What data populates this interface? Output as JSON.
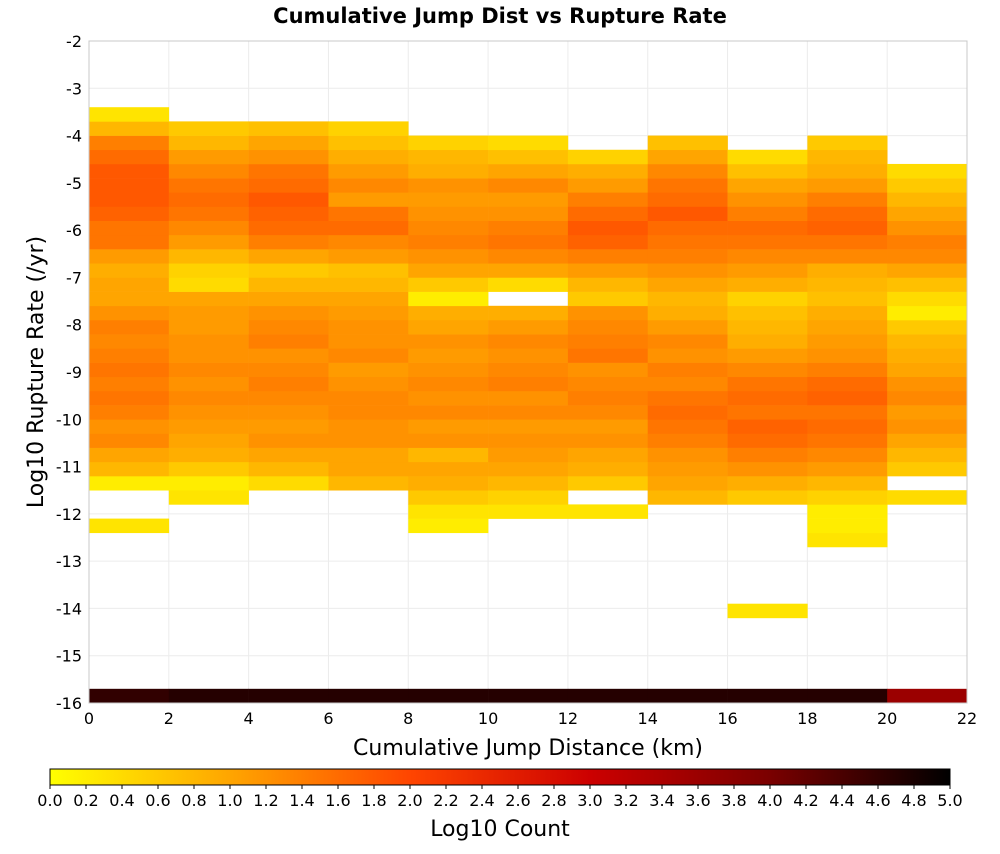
{
  "chart_data": {
    "type": "heatmap",
    "title": "Cumulative Jump Dist vs Rupture Rate",
    "xlabel": "Cumulative Jump Distance (km)",
    "ylabel": "Log10 Rupture Rate (/yr)",
    "xlim": [
      0,
      22
    ],
    "ylim": [
      -16,
      -2
    ],
    "x_ticks": [
      "0",
      "2",
      "4",
      "6",
      "8",
      "10",
      "12",
      "14",
      "16",
      "18",
      "20",
      "22"
    ],
    "y_ticks": [
      "-2",
      "-3",
      "-4",
      "-5",
      "-6",
      "-7",
      "-8",
      "-9",
      "-10",
      "-11",
      "-12",
      "-13",
      "-14",
      "-15",
      "-16"
    ],
    "grid": true,
    "x_bin_width": 2,
    "y_bin_height": 0.3,
    "colorbar": {
      "label": "Log10 Count",
      "min": 0.0,
      "max": 5.0,
      "ticks": [
        "0.0",
        "0.2",
        "0.4",
        "0.6",
        "0.8",
        "1.0",
        "1.2",
        "1.4",
        "1.6",
        "1.8",
        "2.0",
        "2.2",
        "2.4",
        "2.6",
        "2.8",
        "3.0",
        "3.2",
        "3.4",
        "3.6",
        "3.8",
        "4.0",
        "4.2",
        "4.4",
        "4.6",
        "4.8",
        "5.0"
      ],
      "colors": [
        "#ffff00",
        "#ffa500",
        "#ff4500",
        "#cc0000",
        "#7a0000",
        "#000000"
      ]
    },
    "columns": [
      {
        "x": 0,
        "y_start": -16.0,
        "values": [
          4.6,
          null,
          null,
          null,
          null,
          null,
          null,
          null,
          null,
          null,
          null,
          null,
          0.3,
          null,
          null,
          0.2,
          0.8,
          1.0,
          1.3,
          1.2,
          1.4,
          1.5,
          1.4,
          1.5,
          1.4,
          1.3,
          1.4,
          1.2,
          1.0,
          1.0,
          0.9,
          1.1,
          1.5,
          1.5,
          1.7,
          1.8,
          1.8,
          1.8,
          1.6,
          1.4,
          0.8,
          0.3
        ]
      },
      {
        "x": 2,
        "y_start": -16.0,
        "values": [
          4.7,
          null,
          null,
          null,
          null,
          null,
          null,
          null,
          null,
          null,
          null,
          null,
          null,
          null,
          0.3,
          0.2,
          0.6,
          0.9,
          1.0,
          1.1,
          1.2,
          1.3,
          1.2,
          1.3,
          1.2,
          1.2,
          1.1,
          1.1,
          1.0,
          0.4,
          0.5,
          0.8,
          1.1,
          1.3,
          1.5,
          1.6,
          1.5,
          1.3,
          1.1,
          0.8,
          0.6
        ]
      },
      {
        "x": 4,
        "y_start": -16.0,
        "values": [
          4.7,
          null,
          null,
          null,
          null,
          null,
          null,
          null,
          null,
          null,
          null,
          null,
          null,
          null,
          null,
          0.4,
          0.8,
          1.0,
          1.2,
          1.1,
          1.2,
          1.3,
          1.4,
          1.3,
          1.2,
          1.4,
          1.3,
          1.2,
          1.0,
          0.8,
          0.6,
          1.0,
          1.4,
          1.6,
          1.7,
          1.8,
          1.6,
          1.5,
          1.2,
          1.0,
          0.7
        ]
      },
      {
        "x": 6,
        "y_start": -16.0,
        "values": [
          4.7,
          null,
          null,
          null,
          null,
          null,
          null,
          null,
          null,
          null,
          null,
          null,
          null,
          null,
          null,
          0.8,
          1.0,
          1.0,
          1.2,
          1.2,
          1.3,
          1.3,
          1.2,
          1.1,
          1.3,
          1.2,
          1.2,
          1.1,
          1.0,
          0.8,
          0.7,
          1.1,
          1.3,
          1.6,
          1.5,
          1.1,
          1.3,
          1.1,
          0.9,
          0.7,
          0.5
        ]
      },
      {
        "x": 8,
        "y_start": -16.0,
        "values": [
          4.7,
          null,
          null,
          null,
          null,
          null,
          null,
          null,
          null,
          null,
          null,
          null,
          0.2,
          0.3,
          0.6,
          0.9,
          1.0,
          0.8,
          1.2,
          1.1,
          1.3,
          1.2,
          1.3,
          1.2,
          1.1,
          1.2,
          1.0,
          0.9,
          0.2,
          0.6,
          1.0,
          1.2,
          1.4,
          1.3,
          1.2,
          1.1,
          1.2,
          0.9,
          0.8,
          0.5
        ]
      },
      {
        "x": 10,
        "y_start": -16.0,
        "values": [
          4.7,
          null,
          null,
          null,
          null,
          null,
          null,
          null,
          null,
          null,
          null,
          null,
          null,
          0.3,
          0.5,
          0.8,
          1.0,
          1.1,
          1.2,
          1.1,
          1.3,
          1.2,
          1.4,
          1.3,
          1.2,
          1.3,
          1.1,
          0.9,
          null,
          0.4,
          1.0,
          1.3,
          1.5,
          1.4,
          1.2,
          1.1,
          1.3,
          1.0,
          0.7,
          0.4
        ]
      },
      {
        "x": 12,
        "y_start": -16.0,
        "values": [
          4.7,
          null,
          null,
          null,
          null,
          null,
          null,
          null,
          null,
          null,
          null,
          null,
          null,
          0.3,
          null,
          0.6,
          0.9,
          1.0,
          1.2,
          1.1,
          1.3,
          1.4,
          1.3,
          1.2,
          1.5,
          1.4,
          1.3,
          1.2,
          0.6,
          0.8,
          1.1,
          1.4,
          1.7,
          1.8,
          1.6,
          1.4,
          1.1,
          0.9,
          0.5
        ]
      },
      {
        "x": 14,
        "y_start": -16.0,
        "values": [
          4.7,
          null,
          null,
          null,
          null,
          null,
          null,
          null,
          null,
          null,
          null,
          null,
          null,
          null,
          0.8,
          1.0,
          1.1,
          1.2,
          1.4,
          1.5,
          1.6,
          1.5,
          1.3,
          1.4,
          1.2,
          1.3,
          1.1,
          0.9,
          0.8,
          1.0,
          1.2,
          1.4,
          1.5,
          1.6,
          1.8,
          1.6,
          1.5,
          1.3,
          1.0,
          0.7
        ]
      },
      {
        "x": 16,
        "y_start": -16.0,
        "values": [
          4.7,
          null,
          null,
          null,
          null,
          null,
          0.3,
          null,
          null,
          null,
          null,
          null,
          null,
          null,
          0.6,
          0.9,
          1.2,
          1.4,
          1.6,
          1.7,
          1.5,
          1.6,
          1.5,
          1.3,
          1.1,
          0.9,
          0.8,
          0.7,
          0.5,
          0.9,
          1.1,
          1.3,
          1.5,
          1.6,
          1.4,
          1.2,
          1.0,
          0.7,
          0.4
        ]
      },
      {
        "x": 18,
        "y_start": -16.0,
        "values": [
          4.7,
          null,
          null,
          null,
          null,
          null,
          null,
          null,
          null,
          null,
          null,
          0.3,
          0.2,
          0.2,
          0.5,
          0.8,
          1.1,
          1.3,
          1.5,
          1.6,
          1.5,
          1.7,
          1.6,
          1.4,
          1.2,
          1.1,
          1.0,
          0.9,
          0.7,
          0.8,
          0.9,
          1.3,
          1.5,
          1.7,
          1.6,
          1.4,
          1.1,
          0.9,
          0.8,
          0.6
        ]
      },
      {
        "x": 20,
        "y_start": -16.0,
        "values": [
          3.6,
          null,
          null,
          null,
          null,
          null,
          null,
          null,
          null,
          null,
          null,
          null,
          null,
          null,
          0.4,
          null,
          0.6,
          0.8,
          1.0,
          1.2,
          1.1,
          1.3,
          1.2,
          1.0,
          0.9,
          0.8,
          0.6,
          0.2,
          0.4,
          0.7,
          1.0,
          1.3,
          1.4,
          1.2,
          1.0,
          0.8,
          0.6,
          0.4
        ]
      }
    ]
  }
}
